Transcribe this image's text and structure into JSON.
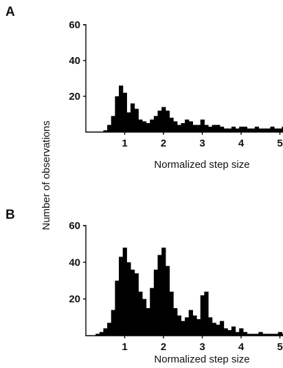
{
  "ylabel": "Number of observations",
  "chart_data": [
    {
      "panel": "A",
      "type": "bar",
      "xlabel": "Normalized step size",
      "xlim": [
        0,
        5.2
      ],
      "ylim": [
        0,
        60
      ],
      "xticks": [
        1,
        2,
        3,
        4,
        5
      ],
      "yticks": [
        20,
        40,
        60
      ],
      "bin_width": 0.1,
      "x": [
        0.4,
        0.5,
        0.6,
        0.7,
        0.8,
        0.9,
        1.0,
        1.1,
        1.2,
        1.3,
        1.4,
        1.5,
        1.6,
        1.7,
        1.8,
        1.9,
        2.0,
        2.1,
        2.2,
        2.3,
        2.4,
        2.5,
        2.6,
        2.7,
        2.8,
        2.9,
        3.0,
        3.1,
        3.2,
        3.3,
        3.4,
        3.5,
        3.6,
        3.7,
        3.8,
        3.9,
        4.0,
        4.1,
        4.2,
        4.3,
        4.4,
        4.5,
        4.6,
        4.7,
        4.8,
        4.9,
        5.0,
        5.1
      ],
      "values": [
        0,
        1,
        4,
        9,
        20,
        26,
        22,
        11,
        16,
        13,
        7,
        6,
        5,
        7,
        9,
        12,
        14,
        12,
        8,
        6,
        4,
        5,
        7,
        6,
        4,
        4,
        7,
        4,
        3,
        4,
        4,
        3,
        2,
        2,
        3,
        2,
        3,
        3,
        2,
        2,
        3,
        2,
        2,
        2,
        3,
        2,
        2,
        3
      ]
    },
    {
      "panel": "B",
      "type": "bar",
      "xlabel": "Normalized step size",
      "xlim": [
        0,
        5.2
      ],
      "ylim": [
        0,
        60
      ],
      "xticks": [
        1,
        2,
        3,
        4,
        5
      ],
      "yticks": [
        20,
        40,
        60
      ],
      "bin_width": 0.1,
      "x": [
        0.3,
        0.4,
        0.5,
        0.6,
        0.7,
        0.8,
        0.9,
        1.0,
        1.1,
        1.2,
        1.3,
        1.4,
        1.5,
        1.6,
        1.7,
        1.8,
        1.9,
        2.0,
        2.1,
        2.2,
        2.3,
        2.4,
        2.5,
        2.6,
        2.7,
        2.8,
        2.9,
        3.0,
        3.1,
        3.2,
        3.3,
        3.4,
        3.5,
        3.6,
        3.7,
        3.8,
        3.9,
        4.0,
        4.1,
        4.2,
        4.3,
        4.4,
        4.5,
        4.6,
        4.7,
        4.8,
        4.9,
        5.0,
        5.1
      ],
      "values": [
        1,
        2,
        4,
        7,
        14,
        30,
        43,
        48,
        40,
        36,
        34,
        24,
        20,
        15,
        26,
        36,
        44,
        48,
        38,
        24,
        15,
        11,
        8,
        10,
        14,
        11,
        9,
        22,
        24,
        10,
        7,
        6,
        8,
        4,
        3,
        5,
        2,
        4,
        2,
        1,
        1,
        1,
        2,
        1,
        1,
        1,
        1,
        2,
        1
      ]
    }
  ]
}
